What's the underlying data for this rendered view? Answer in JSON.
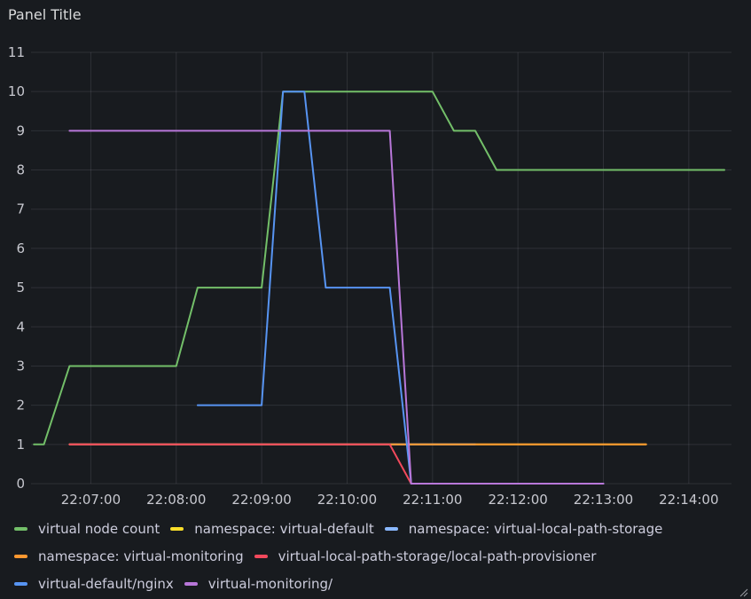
{
  "panel": {
    "title": "Panel Title"
  },
  "chart_data": {
    "type": "line",
    "title": "Panel Title",
    "xlabel": "",
    "ylabel": "",
    "ylim": [
      0,
      11
    ],
    "xlim": [
      "22:06:18",
      "22:14:30"
    ],
    "y_ticks": [
      0,
      1,
      2,
      3,
      4,
      5,
      6,
      7,
      8,
      9,
      10,
      11
    ],
    "x_ticks": [
      "22:07:00",
      "22:08:00",
      "22:09:00",
      "22:10:00",
      "22:11:00",
      "22:12:00",
      "22:13:00",
      "22:14:00"
    ],
    "grid": true,
    "legend_position": "bottom",
    "series": [
      {
        "name": "virtual node count",
        "color": "#73bf69",
        "points": [
          [
            "22:06:20",
            1
          ],
          [
            "22:06:27",
            1
          ],
          [
            "22:06:45",
            3
          ],
          [
            "22:07:00",
            3
          ],
          [
            "22:08:00",
            3
          ],
          [
            "22:08:15",
            5
          ],
          [
            "22:09:00",
            5
          ],
          [
            "22:09:15",
            10
          ],
          [
            "22:10:00",
            10
          ],
          [
            "22:11:00",
            10
          ],
          [
            "22:11:15",
            9
          ],
          [
            "22:11:30",
            9
          ],
          [
            "22:11:45",
            8
          ],
          [
            "22:12:00",
            8
          ],
          [
            "22:13:00",
            8
          ],
          [
            "22:14:00",
            8
          ],
          [
            "22:14:25",
            8
          ]
        ]
      },
      {
        "name": "namespace: virtual-default",
        "color": "#fade2a",
        "points": [
          [
            "22:06:45",
            1
          ],
          [
            "22:13:30",
            1
          ]
        ]
      },
      {
        "name": "namespace: virtual-local-path-storage",
        "color": "#8ab8ff",
        "points": [
          [
            "22:06:45",
            1
          ],
          [
            "22:11:30",
            1
          ]
        ]
      },
      {
        "name": "namespace: virtual-monitoring",
        "color": "#ff9830",
        "points": [
          [
            "22:06:45",
            1
          ],
          [
            "22:13:30",
            1
          ]
        ]
      },
      {
        "name": "virtual-local-path-storage/local-path-provisioner",
        "color": "#f2495c",
        "points": [
          [
            "22:06:45",
            1
          ],
          [
            "22:10:30",
            1
          ],
          [
            "22:10:45",
            0
          ],
          [
            "22:13:00",
            0
          ]
        ]
      },
      {
        "name": "virtual-default/nginx",
        "color": "#5794f2",
        "points": [
          [
            "22:08:15",
            2
          ],
          [
            "22:09:00",
            2
          ],
          [
            "22:09:15",
            10
          ],
          [
            "22:09:30",
            10
          ],
          [
            "22:09:45",
            5
          ],
          [
            "22:10:30",
            5
          ],
          [
            "22:10:45",
            0
          ],
          [
            "22:13:00",
            0
          ]
        ]
      },
      {
        "name": "virtual-monitoring/",
        "color": "#b877d9",
        "points": [
          [
            "22:06:45",
            9
          ],
          [
            "22:10:30",
            9
          ],
          [
            "22:10:45",
            0
          ],
          [
            "22:13:00",
            0
          ]
        ]
      }
    ]
  }
}
